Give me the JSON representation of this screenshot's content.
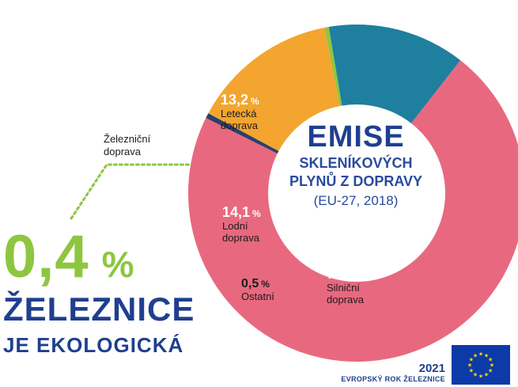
{
  "chart_data": {
    "type": "pie",
    "title": "EMISE",
    "subtitle_lines": [
      "SKLENÍKOVÝCH",
      "PLYNŮ Z DOPRAVY"
    ],
    "subtitle_note": "(EU-27, 2018)",
    "unit": "%",
    "slices": [
      {
        "label_lines": [
          "Silniční",
          "doprava"
        ],
        "value": 71.8,
        "display": "71,8",
        "color": "#e8697f"
      },
      {
        "label_lines": [
          "Ostatní"
        ],
        "value": 0.5,
        "display": "0,5",
        "color": "#2b3f6b"
      },
      {
        "label_lines": [
          "Lodní",
          "doprava"
        ],
        "value": 14.1,
        "display": "14,1",
        "color": "#f3a52f"
      },
      {
        "label_lines": [
          "Železniční",
          "doprava"
        ],
        "value": 0.4,
        "display": "0,4",
        "color": "#8dc63f"
      },
      {
        "label_lines": [
          "Letecká",
          "doprava"
        ],
        "value": 13.2,
        "display": "13,2",
        "color": "#1f7f9e"
      }
    ]
  },
  "headline": {
    "percent": "0,4",
    "unit": "%",
    "line1": "ŽELEZNICE",
    "line2": "JE EKOLOGICKÁ"
  },
  "footer": {
    "year": "2021",
    "label": "EVROPSKÝ ROK ŽELEZNICE"
  },
  "colors": {
    "accent_blue": "#1f3f8f",
    "accent_green": "#8dc63f",
    "eu_flag_blue": "#0d3aa9",
    "eu_star_yellow": "#ffdd00"
  }
}
